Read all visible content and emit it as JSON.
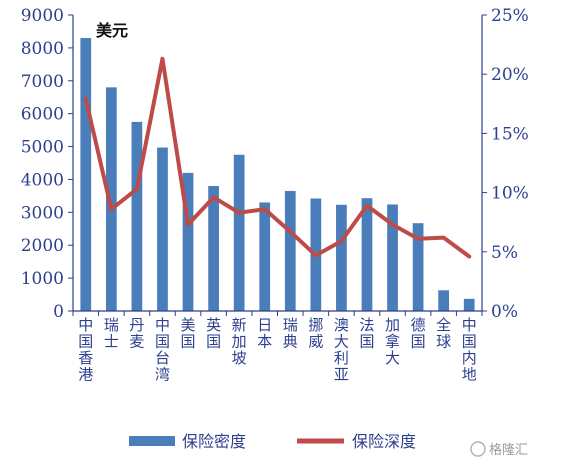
{
  "chart_data": {
    "type": "bar",
    "unit_label": "美元",
    "categories": [
      "中国香港",
      "瑞士",
      "丹麦",
      "中国台湾",
      "美国",
      "英国",
      "新加坡",
      "日本",
      "瑞典",
      "挪威",
      "澳大利亚",
      "法国",
      "加拿大",
      "德国",
      "全球",
      "中国内地"
    ],
    "series": [
      {
        "name": "保险密度",
        "type": "bar",
        "axis": "left",
        "color": "#4a7ebb",
        "values": [
          8300,
          6800,
          5750,
          4970,
          4200,
          3800,
          4750,
          3300,
          3650,
          3420,
          3230,
          3430,
          3240,
          2670,
          630,
          370
        ]
      },
      {
        "name": "保险深度",
        "type": "line",
        "axis": "right",
        "color": "#be4b48",
        "values": [
          17.9,
          8.6,
          10.3,
          21.3,
          7.3,
          9.6,
          8.3,
          8.6,
          6.7,
          4.7,
          5.9,
          8.9,
          7.3,
          6.1,
          6.2,
          4.6
        ]
      }
    ],
    "y_left": {
      "min": 0,
      "max": 9000,
      "ticks": [
        "0",
        "1000",
        "2000",
        "3000",
        "4000",
        "5000",
        "6000",
        "7000",
        "8000",
        "9000"
      ]
    },
    "y_right": {
      "min": 0,
      "max": 25,
      "ticks": [
        "0%",
        "5%",
        "10%",
        "15%",
        "20%",
        "25%"
      ]
    },
    "grid": false,
    "legend_position": "bottom"
  },
  "watermark": {
    "text": "格隆汇"
  }
}
